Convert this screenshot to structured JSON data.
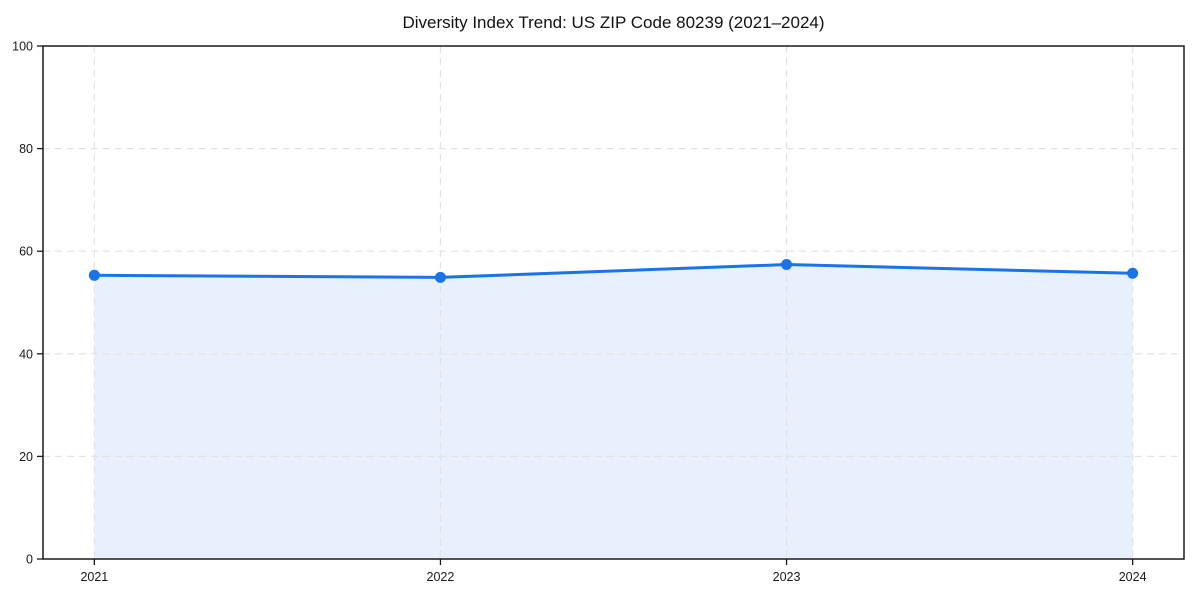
{
  "chart_data": {
    "type": "line",
    "title": "Diversity Index Trend: US ZIP Code 80239 (2021–2024)",
    "x_tick_labels": [
      "2021",
      "2022",
      "2023",
      "2024"
    ],
    "values": [
      55.3,
      54.9,
      57.4,
      55.7
    ],
    "y_ticks": [
      0,
      20,
      40,
      60,
      80,
      100
    ],
    "ylim": [
      0,
      100
    ],
    "xlabel": "",
    "ylabel": "",
    "grid": true,
    "legend_position": "none",
    "style": {
      "line_color": "#1a73e8",
      "marker_color": "#1a73e8",
      "area_fill_color": "#e8f0fd",
      "grid_color": "#e2e2e2",
      "axis_color": "#1a1a1a",
      "tick_label_color": "#1a1a1a",
      "has_area_fill": true,
      "has_markers": true
    }
  }
}
